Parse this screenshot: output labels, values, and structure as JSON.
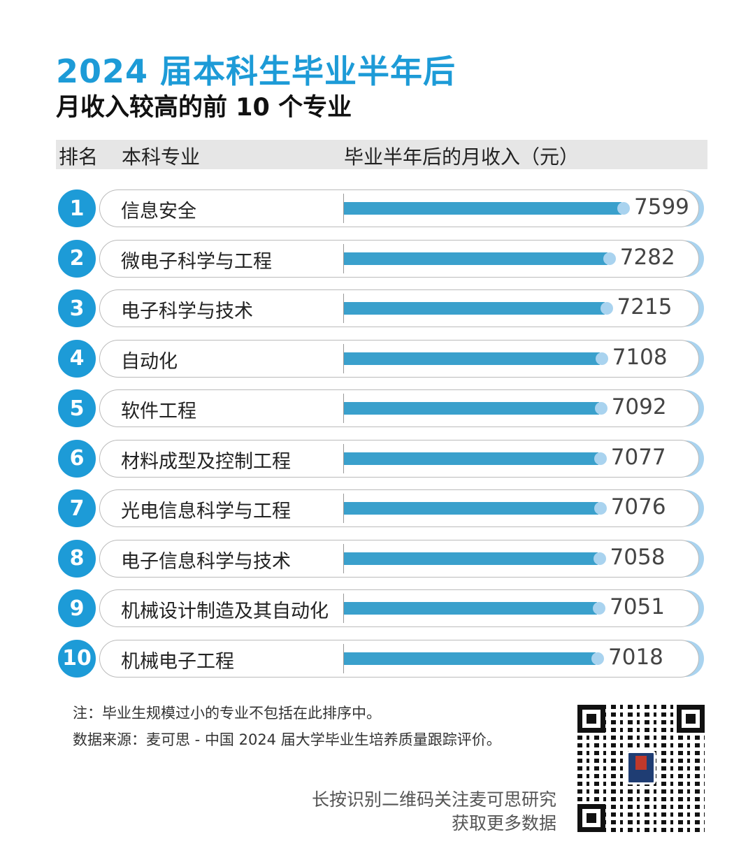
{
  "title": "2024 届本科生毕业半年后",
  "subtitle": "月收入较高的前 10 个专业",
  "header": {
    "rank": "排名",
    "major": "本科专业",
    "income": "毕业半年后的月收入（元）"
  },
  "chart_data": {
    "type": "bar",
    "orientation": "horizontal",
    "title": "2024 届本科生毕业半年后 月收入较高的前 10 个专业",
    "ylabel": "毕业半年后的月收入（元）",
    "ranks": [
      "1",
      "2",
      "3",
      "4",
      "5",
      "6",
      "7",
      "8",
      "9",
      "10"
    ],
    "categories": [
      "信息安全",
      "微电子科学与工程",
      "电子科学与技术",
      "自动化",
      "软件工程",
      "材料成型及控制工程",
      "光电信息科学与工程",
      "电子信息科学与技术",
      "机械设计制造及其自动化",
      "机械电子工程"
    ],
    "values": [
      7599,
      7282,
      7215,
      7108,
      7092,
      7077,
      7076,
      7058,
      7051,
      7018
    ],
    "colors": {
      "badge": "#1d9bd7",
      "bar": "#3aa0cc",
      "cap": "#a9d3ef"
    }
  },
  "notes": {
    "note": "注：毕业生规模过小的专业不包括在此排序中。",
    "source": "数据来源：麦可思 - 中国 2024 届大学毕业生培养质量跟踪评价。"
  },
  "cta": {
    "line1": "长按识别二维码关注麦可思研究",
    "line2": "获取更多数据"
  },
  "watermark": "麦可思研究"
}
